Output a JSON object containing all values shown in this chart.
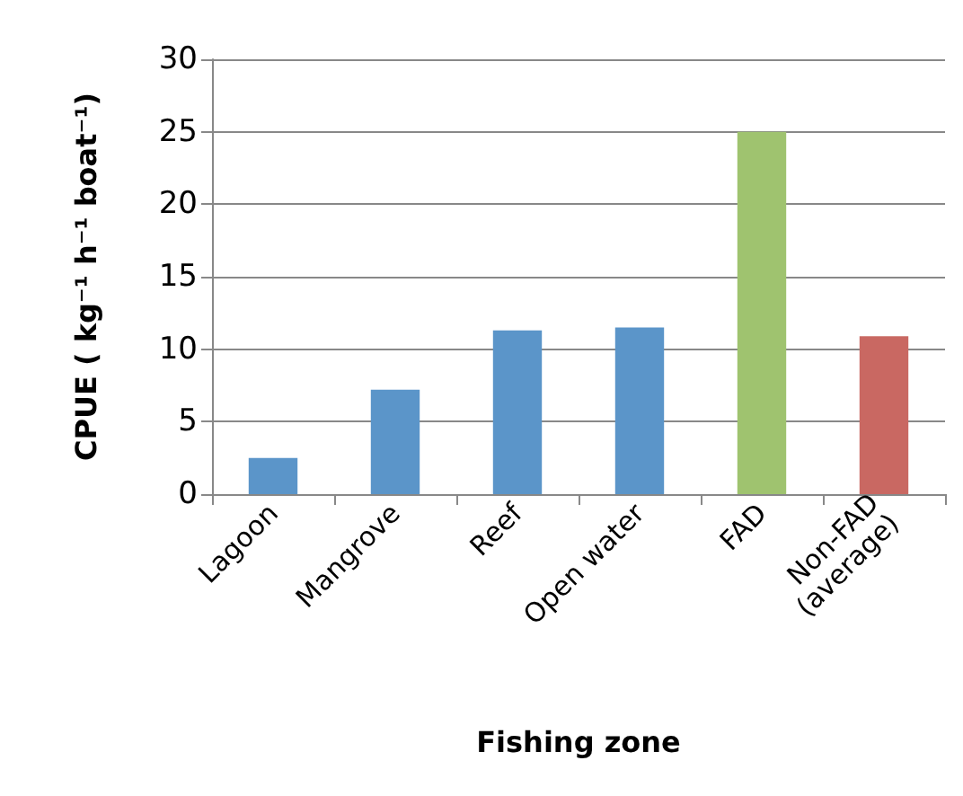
{
  "chart_data": {
    "type": "bar",
    "categories": [
      "Lagoon",
      "Mangrove",
      "Reef",
      "Open water",
      "FAD",
      "Non-FAD\n(average)"
    ],
    "values": [
      2.5,
      7.2,
      11.3,
      11.5,
      25,
      10.9
    ],
    "colors": [
      "#5b95c9",
      "#5b95c9",
      "#5b95c9",
      "#5b95c9",
      "#9fc36f",
      "#c96862"
    ],
    "xlabel": "Fishing zone",
    "ylabel": "CPUE ( kg⁻¹ h⁻¹ boat⁻¹)",
    "ylim": [
      0,
      30
    ],
    "yticks": [
      0,
      5,
      10,
      15,
      20,
      25,
      30
    ],
    "grid": "y"
  }
}
